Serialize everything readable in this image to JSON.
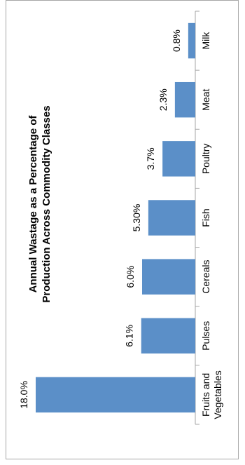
{
  "chart_data": {
    "type": "bar",
    "title_lines": [
      "Annual Wastage as a Percentage of",
      "Production Across Commodity Classes"
    ],
    "categories": [
      [
        "Fruits and",
        "Vegetables"
      ],
      [
        "Pulses"
      ],
      [
        "Cereals"
      ],
      [
        "Fish"
      ],
      [
        "Poultry"
      ],
      [
        "Meat"
      ],
      [
        "Milk"
      ]
    ],
    "values": [
      18.0,
      6.1,
      6.0,
      5.3,
      3.7,
      2.3,
      0.8
    ],
    "data_labels": [
      "18.0%",
      "6.1%",
      "6.0%",
      "5.30%",
      "3.7%",
      "2.3%",
      "0.8%"
    ],
    "bar_color": "#5b8fc8",
    "axis_color": "#a6a6a6",
    "ylim": [
      0,
      18.0
    ],
    "orientation": "rotated-90-clockwise"
  }
}
